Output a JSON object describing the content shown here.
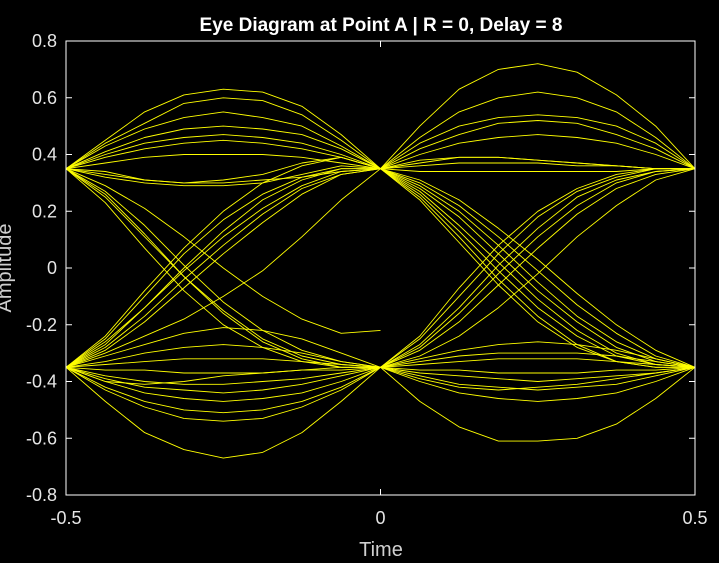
{
  "chart_data": {
    "type": "line",
    "title": "Eye Diagram at Point A | R = 0, Delay = 8",
    "xlabel": "Time",
    "ylabel": "Amplitude",
    "xlim": [
      -0.5,
      0.5
    ],
    "ylim": [
      -0.8,
      0.8
    ],
    "xticks": [
      "-0.5",
      "0",
      "0.5"
    ],
    "yticks": [
      "-0.8",
      "-0.6",
      "-0.4",
      "-0.2",
      "0",
      "0.2",
      "0.4",
      "0.6",
      "0.8"
    ],
    "grid": false,
    "legend": "none",
    "colors": {
      "background": "#000000",
      "trace": "#ffff00",
      "axes": "#ffffff"
    },
    "sample_x": [
      -0.5,
      -0.4375,
      -0.375,
      -0.3125,
      -0.25,
      -0.1875,
      -0.125,
      -0.0625,
      0
    ],
    "series": [
      {
        "window": "left",
        "y": [
          0.35,
          0.45,
          0.55,
          0.61,
          0.63,
          0.62,
          0.57,
          0.47,
          0.35
        ]
      },
      {
        "window": "left",
        "y": [
          0.35,
          0.44,
          0.51,
          0.58,
          0.6,
          0.59,
          0.54,
          0.45,
          0.35
        ]
      },
      {
        "window": "left",
        "y": [
          0.35,
          0.43,
          0.49,
          0.53,
          0.55,
          0.53,
          0.5,
          0.43,
          0.35
        ]
      },
      {
        "window": "left",
        "y": [
          0.35,
          0.41,
          0.46,
          0.49,
          0.5,
          0.49,
          0.47,
          0.42,
          0.35
        ]
      },
      {
        "window": "left",
        "y": [
          0.35,
          0.4,
          0.44,
          0.46,
          0.47,
          0.46,
          0.44,
          0.4,
          0.35
        ]
      },
      {
        "window": "left",
        "y": [
          0.35,
          0.39,
          0.42,
          0.44,
          0.45,
          0.44,
          0.42,
          0.39,
          0.35
        ]
      },
      {
        "window": "left",
        "y": [
          0.35,
          0.37,
          0.39,
          0.4,
          0.4,
          0.4,
          0.39,
          0.37,
          0.35
        ]
      },
      {
        "window": "left",
        "y": [
          0.35,
          0.33,
          0.31,
          0.3,
          0.3,
          0.31,
          0.32,
          0.34,
          0.35
        ]
      },
      {
        "window": "left",
        "y": [
          0.35,
          0.32,
          0.3,
          0.29,
          0.29,
          0.3,
          0.33,
          0.36,
          0.35
        ]
      },
      {
        "window": "left",
        "y": [
          0.35,
          0.34,
          0.31,
          0.3,
          0.31,
          0.33,
          0.37,
          0.39,
          0.35
        ]
      },
      {
        "window": "left",
        "y": [
          0.35,
          0.27,
          0.15,
          0.01,
          -0.12,
          -0.22,
          -0.29,
          -0.33,
          -0.35
        ]
      },
      {
        "window": "left",
        "y": [
          0.35,
          0.25,
          0.11,
          -0.03,
          -0.15,
          -0.25,
          -0.31,
          -0.34,
          -0.35
        ]
      },
      {
        "window": "left",
        "y": [
          0.35,
          0.23,
          0.07,
          -0.08,
          -0.2,
          -0.28,
          -0.33,
          -0.35,
          -0.35
        ]
      },
      {
        "window": "left",
        "y": [
          0.35,
          0.29,
          0.21,
          0.11,
          0.0,
          -0.1,
          -0.18,
          -0.23,
          -0.22
        ]
      },
      {
        "window": "left",
        "y": [
          0.35,
          0.26,
          0.12,
          -0.03,
          -0.16,
          -0.26,
          -0.32,
          -0.35,
          -0.35
        ]
      },
      {
        "window": "left",
        "y": [
          -0.35,
          -0.27,
          -0.14,
          0.0,
          0.13,
          0.24,
          0.31,
          0.35,
          0.35
        ]
      },
      {
        "window": "left",
        "y": [
          -0.35,
          -0.25,
          -0.1,
          0.05,
          0.17,
          0.26,
          0.32,
          0.35,
          0.35
        ]
      },
      {
        "window": "left",
        "y": [
          -0.35,
          -0.29,
          -0.19,
          -0.07,
          0.05,
          0.16,
          0.26,
          0.33,
          0.35
        ]
      },
      {
        "window": "left",
        "y": [
          -0.35,
          -0.28,
          -0.17,
          -0.04,
          0.08,
          0.19,
          0.28,
          0.33,
          0.35
        ]
      },
      {
        "window": "left",
        "y": [
          -0.35,
          -0.24,
          -0.08,
          0.07,
          0.2,
          0.3,
          0.36,
          0.39,
          0.35
        ]
      },
      {
        "window": "left",
        "y": [
          -0.35,
          -0.3,
          -0.24,
          -0.18,
          -0.1,
          -0.01,
          0.11,
          0.24,
          0.35
        ]
      },
      {
        "window": "left",
        "y": [
          -0.35,
          -0.26,
          -0.14,
          -0.01,
          0.11,
          0.21,
          0.29,
          0.34,
          0.35
        ]
      },
      {
        "window": "left",
        "y": [
          -0.35,
          -0.31,
          -0.27,
          -0.23,
          -0.21,
          -0.22,
          -0.25,
          -0.3,
          -0.35
        ]
      },
      {
        "window": "left",
        "y": [
          -0.35,
          -0.33,
          -0.3,
          -0.28,
          -0.27,
          -0.28,
          -0.3,
          -0.33,
          -0.35
        ]
      },
      {
        "window": "left",
        "y": [
          -0.35,
          -0.34,
          -0.33,
          -0.32,
          -0.32,
          -0.32,
          -0.33,
          -0.34,
          -0.35
        ]
      },
      {
        "window": "left",
        "y": [
          -0.35,
          -0.36,
          -0.36,
          -0.37,
          -0.37,
          -0.37,
          -0.36,
          -0.36,
          -0.35
        ]
      },
      {
        "window": "left",
        "y": [
          -0.35,
          -0.38,
          -0.4,
          -0.41,
          -0.41,
          -0.4,
          -0.39,
          -0.37,
          -0.35
        ]
      },
      {
        "window": "left",
        "y": [
          -0.35,
          -0.39,
          -0.42,
          -0.43,
          -0.44,
          -0.43,
          -0.41,
          -0.38,
          -0.35
        ]
      },
      {
        "window": "left",
        "y": [
          -0.35,
          -0.4,
          -0.44,
          -0.46,
          -0.47,
          -0.46,
          -0.44,
          -0.4,
          -0.35
        ]
      },
      {
        "window": "left",
        "y": [
          -0.35,
          -0.42,
          -0.47,
          -0.5,
          -0.51,
          -0.5,
          -0.47,
          -0.42,
          -0.35
        ]
      },
      {
        "window": "left",
        "y": [
          -0.35,
          -0.43,
          -0.49,
          -0.53,
          -0.54,
          -0.53,
          -0.49,
          -0.43,
          -0.35
        ]
      },
      {
        "window": "left",
        "y": [
          -0.35,
          -0.47,
          -0.58,
          -0.64,
          -0.67,
          -0.65,
          -0.58,
          -0.47,
          -0.35
        ]
      },
      {
        "window": "left",
        "y": [
          -0.35,
          -0.4,
          -0.41,
          -0.4,
          -0.38,
          -0.37,
          -0.36,
          -0.35,
          -0.35
        ]
      },
      {
        "window": "right",
        "y": [
          0.35,
          0.5,
          0.63,
          0.7,
          0.72,
          0.69,
          0.61,
          0.5,
          0.35
        ]
      },
      {
        "window": "right",
        "y": [
          0.35,
          0.46,
          0.55,
          0.6,
          0.62,
          0.6,
          0.55,
          0.46,
          0.35
        ]
      },
      {
        "window": "right",
        "y": [
          0.35,
          0.44,
          0.5,
          0.53,
          0.54,
          0.53,
          0.5,
          0.44,
          0.35
        ]
      },
      {
        "window": "right",
        "y": [
          0.35,
          0.42,
          0.47,
          0.51,
          0.52,
          0.51,
          0.47,
          0.42,
          0.35
        ]
      },
      {
        "window": "right",
        "y": [
          0.35,
          0.4,
          0.44,
          0.46,
          0.47,
          0.46,
          0.44,
          0.4,
          0.35
        ]
      },
      {
        "window": "right",
        "y": [
          0.35,
          0.37,
          0.39,
          0.39,
          0.38,
          0.37,
          0.36,
          0.35,
          0.35
        ]
      },
      {
        "window": "right",
        "y": [
          0.35,
          0.38,
          0.39,
          0.39,
          0.38,
          0.37,
          0.36,
          0.35,
          0.35
        ]
      },
      {
        "window": "right",
        "y": [
          0.35,
          0.36,
          0.37,
          0.37,
          0.37,
          0.36,
          0.36,
          0.35,
          0.35
        ]
      },
      {
        "window": "right",
        "y": [
          0.35,
          0.34,
          0.34,
          0.34,
          0.34,
          0.34,
          0.34,
          0.35,
          0.35
        ]
      },
      {
        "window": "right",
        "y": [
          0.35,
          0.3,
          0.22,
          0.11,
          -0.01,
          -0.13,
          -0.23,
          -0.31,
          -0.35
        ]
      },
      {
        "window": "right",
        "y": [
          0.35,
          0.28,
          0.18,
          0.05,
          -0.08,
          -0.19,
          -0.28,
          -0.33,
          -0.35
        ]
      },
      {
        "window": "right",
        "y": [
          0.35,
          0.27,
          0.15,
          0.02,
          -0.11,
          -0.22,
          -0.3,
          -0.34,
          -0.35
        ]
      },
      {
        "window": "right",
        "y": [
          0.35,
          0.26,
          0.13,
          -0.01,
          -0.14,
          -0.24,
          -0.31,
          -0.34,
          -0.35
        ]
      },
      {
        "window": "right",
        "y": [
          0.35,
          0.25,
          0.11,
          -0.04,
          -0.17,
          -0.27,
          -0.33,
          -0.35,
          -0.35
        ]
      },
      {
        "window": "right",
        "y": [
          0.35,
          0.29,
          0.2,
          0.08,
          -0.05,
          -0.17,
          -0.26,
          -0.32,
          -0.35
        ]
      },
      {
        "window": "right",
        "y": [
          0.35,
          0.31,
          0.24,
          0.14,
          0.03,
          -0.09,
          -0.2,
          -0.29,
          -0.35
        ]
      },
      {
        "window": "right",
        "y": [
          0.35,
          0.24,
          0.09,
          -0.06,
          -0.19,
          -0.28,
          -0.33,
          -0.35,
          -0.35
        ]
      },
      {
        "window": "right",
        "y": [
          -0.35,
          -0.27,
          -0.14,
          0.01,
          0.14,
          0.25,
          0.31,
          0.34,
          0.35
        ]
      },
      {
        "window": "right",
        "y": [
          -0.35,
          -0.25,
          -0.1,
          0.05,
          0.18,
          0.27,
          0.32,
          0.35,
          0.35
        ]
      },
      {
        "window": "right",
        "y": [
          -0.35,
          -0.29,
          -0.19,
          -0.06,
          0.07,
          0.19,
          0.28,
          0.33,
          0.35
        ]
      },
      {
        "window": "right",
        "y": [
          -0.35,
          -0.31,
          -0.24,
          -0.14,
          -0.02,
          0.11,
          0.22,
          0.31,
          0.35
        ]
      },
      {
        "window": "right",
        "y": [
          -0.35,
          -0.24,
          -0.07,
          0.08,
          0.2,
          0.28,
          0.33,
          0.35,
          0.35
        ]
      },
      {
        "window": "right",
        "y": [
          -0.35,
          -0.28,
          -0.16,
          -0.02,
          0.11,
          0.22,
          0.3,
          0.34,
          0.35
        ]
      },
      {
        "window": "right",
        "y": [
          -0.35,
          -0.32,
          -0.29,
          -0.27,
          -0.26,
          -0.27,
          -0.29,
          -0.32,
          -0.35
        ]
      },
      {
        "window": "right",
        "y": [
          -0.35,
          -0.33,
          -0.31,
          -0.3,
          -0.3,
          -0.3,
          -0.31,
          -0.33,
          -0.35
        ]
      },
      {
        "window": "right",
        "y": [
          -0.35,
          -0.34,
          -0.33,
          -0.32,
          -0.32,
          -0.32,
          -0.33,
          -0.34,
          -0.35
        ]
      },
      {
        "window": "right",
        "y": [
          -0.35,
          -0.36,
          -0.36,
          -0.37,
          -0.37,
          -0.37,
          -0.36,
          -0.36,
          -0.35
        ]
      },
      {
        "window": "right",
        "y": [
          -0.35,
          -0.37,
          -0.38,
          -0.39,
          -0.4,
          -0.39,
          -0.38,
          -0.37,
          -0.35
        ]
      },
      {
        "window": "right",
        "y": [
          -0.35,
          -0.38,
          -0.41,
          -0.42,
          -0.43,
          -0.42,
          -0.41,
          -0.38,
          -0.35
        ]
      },
      {
        "window": "right",
        "y": [
          -0.35,
          -0.4,
          -0.44,
          -0.46,
          -0.47,
          -0.46,
          -0.44,
          -0.4,
          -0.35
        ]
      },
      {
        "window": "right",
        "y": [
          -0.35,
          -0.47,
          -0.56,
          -0.61,
          -0.61,
          -0.6,
          -0.55,
          -0.46,
          -0.35
        ]
      },
      {
        "window": "right",
        "y": [
          -0.35,
          -0.39,
          -0.42,
          -0.43,
          -0.42,
          -0.41,
          -0.39,
          -0.37,
          -0.35
        ]
      }
    ]
  }
}
